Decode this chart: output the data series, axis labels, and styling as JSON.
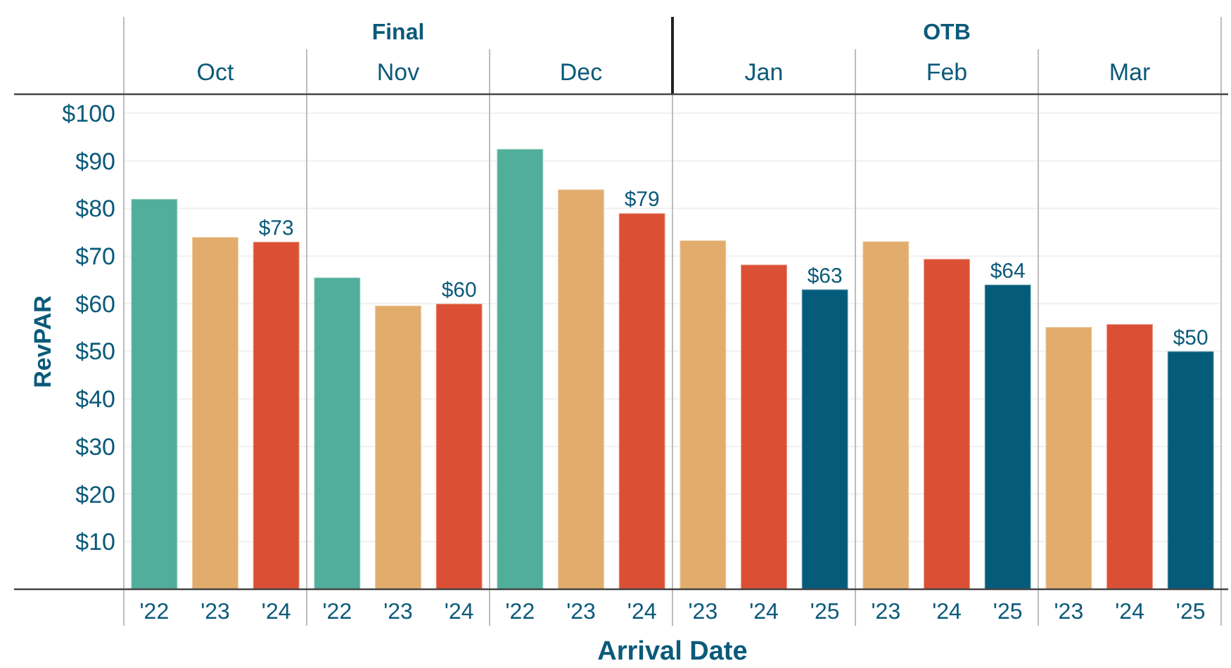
{
  "chart_data": {
    "type": "bar",
    "ylabel": "RevPAR",
    "xlabel": "Arrival Date",
    "categories": [
      "'22",
      "'23",
      "'24",
      "'22",
      "'23",
      "'24",
      "'22",
      "'23",
      "'24",
      "'23",
      "'24",
      "'25",
      "'23",
      "'24",
      "'25",
      "'23",
      "'24",
      "'25"
    ],
    "values": [
      82,
      74,
      73,
      65.5,
      59.6,
      60,
      92.5,
      84,
      79,
      73.3,
      68.2,
      63,
      73.1,
      69.4,
      64,
      55.1,
      55.7,
      50
    ],
    "colors": [
      "#50ae9b",
      "#e2ac6c",
      "#db5034",
      "#50ae9b",
      "#e2ac6c",
      "#db5034",
      "#50ae9b",
      "#e2ac6c",
      "#db5034",
      "#e2ac6c",
      "#db5034",
      "#045c7a",
      "#e2ac6c",
      "#db5034",
      "#045c7a",
      "#e2ac6c",
      "#db5034",
      "#045c7a"
    ],
    "value_labels": [
      null,
      null,
      "$73",
      null,
      null,
      "$60",
      null,
      null,
      "$79",
      null,
      null,
      "$63",
      null,
      null,
      "$64",
      null,
      null,
      "$50"
    ],
    "annotations": [
      "Final",
      "OTB",
      "Oct",
      "Nov",
      "Dec",
      "Jan",
      "Feb",
      "Mar"
    ],
    "ylim": [
      0,
      104
    ],
    "yticks": [
      {
        "value": 10,
        "label": "$10"
      },
      {
        "value": 20,
        "label": "$20"
      },
      {
        "value": 30,
        "label": "$30"
      },
      {
        "value": 40,
        "label": "$40"
      },
      {
        "value": 50,
        "label": "$50"
      },
      {
        "value": 60,
        "label": "$60"
      },
      {
        "value": 70,
        "label": "$70"
      },
      {
        "value": 80,
        "label": "$80"
      },
      {
        "value": 90,
        "label": "$90"
      },
      {
        "value": 100,
        "label": "$100"
      }
    ],
    "grid": "y"
  }
}
